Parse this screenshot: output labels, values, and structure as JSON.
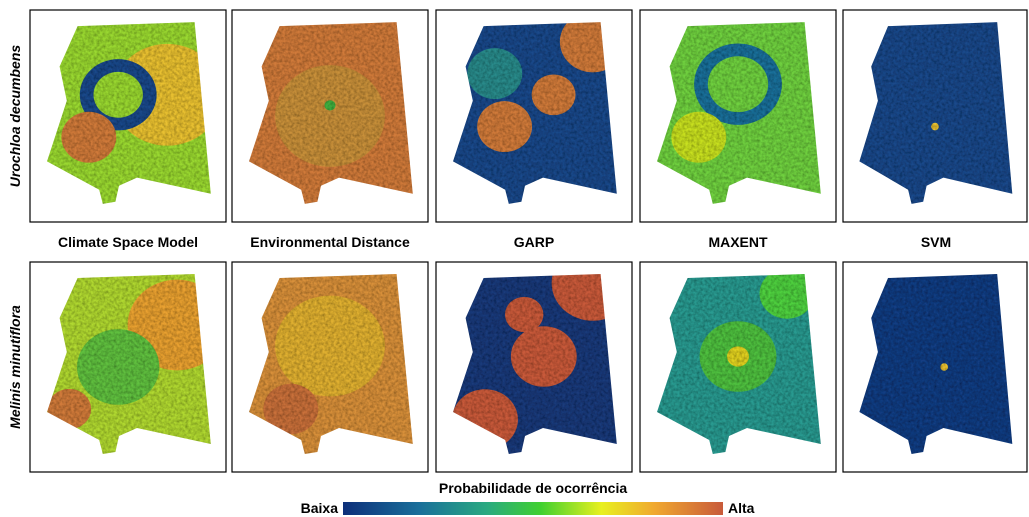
{
  "row_labels": [
    "Urochloa decumbens",
    "Melinis minutiflora"
  ],
  "column_labels": [
    "Climate Space Model",
    "Environmental Distance",
    "GARP",
    "MAXENT",
    "SVM"
  ],
  "legend": {
    "title": "Probabilidade de ocorrência",
    "low": "Baixa",
    "high": "Alta"
  }
}
